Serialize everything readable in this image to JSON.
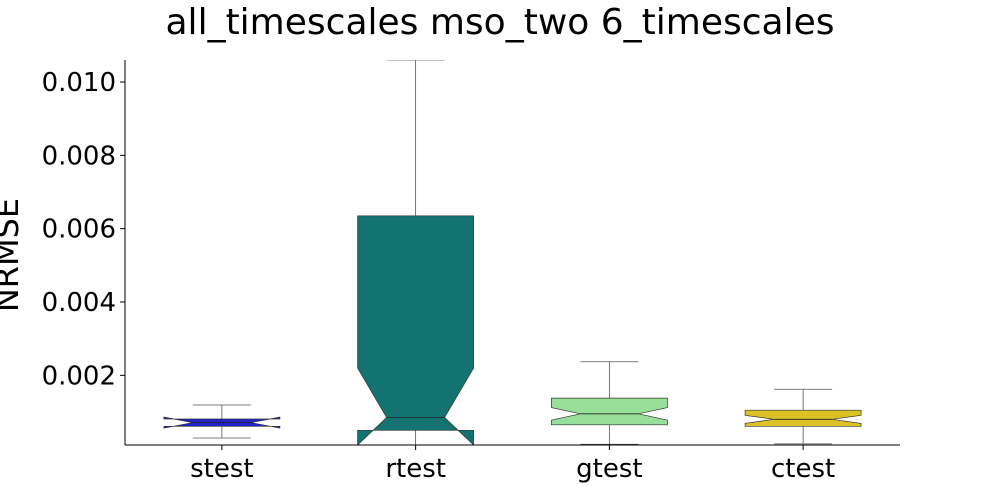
{
  "chart_data": {
    "type": "box",
    "title": "all_timescales mso_two 6_timescales",
    "xlabel": "",
    "ylabel": "NRMSE",
    "ylim": [
      0.0001,
      0.0106
    ],
    "yticks": [
      "0.002",
      "0.004",
      "0.006",
      "0.008",
      "0.010"
    ],
    "ytick_values": [
      0.002,
      0.004,
      0.006,
      0.008,
      0.01
    ],
    "categories": [
      "stest",
      "rtest",
      "gtest",
      "ctest"
    ],
    "boxes": [
      {
        "category": "stest",
        "color": "#1f23c8",
        "whislo": 0.00029,
        "q1": 0.00061,
        "med": 0.00071,
        "q3": 0.00081,
        "whishi": 0.00119,
        "notch_lo": 0.00056,
        "notch_hi": 0.00086
      },
      {
        "category": "rtest",
        "color": "#137370",
        "whislo": 0.0001,
        "q1": 0.0005,
        "med": 0.00085,
        "q3": 0.00635,
        "whishi": 0.0106,
        "notch_lo": 0.0001,
        "notch_hi": 0.0022
      },
      {
        "category": "gtest",
        "color": "#98e09a",
        "whislo": 0.00012,
        "q1": 0.00065,
        "med": 0.00095,
        "q3": 0.00138,
        "whishi": 0.00237,
        "notch_lo": 0.00078,
        "notch_hi": 0.00112
      },
      {
        "category": "ctest",
        "color": "#dbc327",
        "whislo": 0.00013,
        "q1": 0.00061,
        "med": 0.0008,
        "q3": 0.00105,
        "whishi": 0.00162,
        "notch_lo": 0.00069,
        "notch_hi": 0.00091
      }
    ]
  }
}
